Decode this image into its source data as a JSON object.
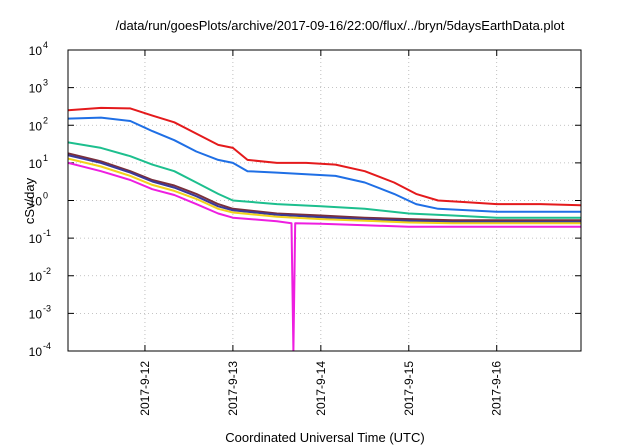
{
  "chart_data": {
    "type": "line",
    "title": "/data/run/goesPlots/archive/2017-09-16/22:00/flux/../bryn/5daysEarthData.plot",
    "xlabel": "Coordinated Universal Time (UTC)",
    "ylabel": "cSv/day",
    "yscale": "log",
    "ylim": [
      0.0001,
      10000
    ],
    "xlim": [
      "2017-09-11T03:00",
      "2017-09-16T23:00"
    ],
    "grid": true,
    "legend": "none",
    "x_ticks": [
      "2017-9-12",
      "2017-9-13",
      "2017-9-14",
      "2017-9-15",
      "2017-9-16"
    ],
    "y_ticks": [
      {
        "base": "10",
        "exp": "-4"
      },
      {
        "base": "10",
        "exp": "-3"
      },
      {
        "base": "10",
        "exp": "-2"
      },
      {
        "base": "10",
        "exp": "-1"
      },
      {
        "base": "10",
        "exp": "0"
      },
      {
        "base": "10",
        "exp": "1"
      },
      {
        "base": "10",
        "exp": "2"
      },
      {
        "base": "10",
        "exp": "3"
      },
      {
        "base": "10",
        "exp": "4"
      }
    ],
    "series": [
      {
        "color": "#e41a1c",
        "x": [
          "2017-09-11T03:00",
          "2017-09-11T12:00",
          "2017-09-11T20:00",
          "2017-09-12T02:00",
          "2017-09-12T08:00",
          "2017-09-12T14:00",
          "2017-09-12T20:00",
          "2017-09-13T00:00",
          "2017-09-13T04:00",
          "2017-09-13T12:00",
          "2017-09-13T20:00",
          "2017-09-14T04:00",
          "2017-09-14T12:00",
          "2017-09-14T20:00",
          "2017-09-15T02:00",
          "2017-09-15T08:00",
          "2017-09-15T16:00",
          "2017-09-16T00:00",
          "2017-09-16T12:00",
          "2017-09-16T23:00"
        ],
        "y": [
          250,
          290,
          280,
          180,
          120,
          60,
          30,
          25,
          12,
          10,
          10,
          9,
          6,
          3,
          1.5,
          1.0,
          0.9,
          0.8,
          0.8,
          0.75
        ]
      },
      {
        "color": "#1f6fe5",
        "x": [
          "2017-09-11T03:00",
          "2017-09-11T12:00",
          "2017-09-11T20:00",
          "2017-09-12T02:00",
          "2017-09-12T08:00",
          "2017-09-12T14:00",
          "2017-09-12T20:00",
          "2017-09-13T00:00",
          "2017-09-13T04:00",
          "2017-09-13T12:00",
          "2017-09-13T20:00",
          "2017-09-14T04:00",
          "2017-09-14T12:00",
          "2017-09-14T20:00",
          "2017-09-15T02:00",
          "2017-09-15T08:00",
          "2017-09-15T16:00",
          "2017-09-16T00:00",
          "2017-09-16T12:00",
          "2017-09-16T23:00"
        ],
        "y": [
          150,
          160,
          130,
          70,
          40,
          20,
          12,
          10,
          6,
          5.5,
          5,
          4.5,
          3,
          1.5,
          0.8,
          0.6,
          0.55,
          0.5,
          0.5,
          0.5
        ]
      },
      {
        "color": "#1dbf8e",
        "x": [
          "2017-09-11T03:00",
          "2017-09-11T12:00",
          "2017-09-11T20:00",
          "2017-09-12T02:00",
          "2017-09-12T08:00",
          "2017-09-12T14:00",
          "2017-09-12T20:00",
          "2017-09-13T00:00",
          "2017-09-13T12:00",
          "2017-09-14T00:00",
          "2017-09-14T12:00",
          "2017-09-15T00:00",
          "2017-09-15T12:00",
          "2017-09-16T00:00",
          "2017-09-16T23:00"
        ],
        "y": [
          35,
          25,
          15,
          9,
          6,
          3,
          1.5,
          1.0,
          0.8,
          0.7,
          0.6,
          0.45,
          0.4,
          0.35,
          0.35
        ]
      },
      {
        "color": "#7a2f3b",
        "x": [
          "2017-09-11T03:00",
          "2017-09-11T12:00",
          "2017-09-11T20:00",
          "2017-09-12T02:00",
          "2017-09-12T08:00",
          "2017-09-12T14:00",
          "2017-09-12T20:00",
          "2017-09-13T00:00",
          "2017-09-13T12:00",
          "2017-09-14T00:00",
          "2017-09-14T12:00",
          "2017-09-15T00:00",
          "2017-09-15T12:00",
          "2017-09-16T00:00",
          "2017-09-16T23:00"
        ],
        "y": [
          18,
          11,
          6,
          3.5,
          2.5,
          1.5,
          0.8,
          0.6,
          0.45,
          0.4,
          0.35,
          0.32,
          0.3,
          0.3,
          0.3
        ]
      },
      {
        "color": "#3a3a9a",
        "x": [
          "2017-09-11T03:00",
          "2017-09-11T12:00",
          "2017-09-11T20:00",
          "2017-09-12T02:00",
          "2017-09-12T08:00",
          "2017-09-12T14:00",
          "2017-09-12T20:00",
          "2017-09-13T00:00",
          "2017-09-13T12:00",
          "2017-09-14T00:00",
          "2017-09-14T12:00",
          "2017-09-15T00:00",
          "2017-09-15T12:00",
          "2017-09-16T00:00",
          "2017-09-16T23:00"
        ],
        "y": [
          16,
          10,
          5.5,
          3.2,
          2.2,
          1.3,
          0.7,
          0.55,
          0.42,
          0.36,
          0.32,
          0.29,
          0.27,
          0.27,
          0.27
        ]
      },
      {
        "color": "#f2d21c",
        "x": [
          "2017-09-11T03:00",
          "2017-09-11T12:00",
          "2017-09-11T20:00",
          "2017-09-12T02:00",
          "2017-09-12T08:00",
          "2017-09-12T14:00",
          "2017-09-12T20:00",
          "2017-09-13T00:00",
          "2017-09-13T12:00",
          "2017-09-14T00:00",
          "2017-09-14T12:00",
          "2017-09-15T00:00",
          "2017-09-15T12:00",
          "2017-09-16T00:00",
          "2017-09-16T23:00"
        ],
        "y": [
          13,
          8,
          4.5,
          2.6,
          1.8,
          1.1,
          0.6,
          0.48,
          0.37,
          0.32,
          0.29,
          0.26,
          0.25,
          0.25,
          0.25
        ]
      },
      {
        "color": "#ee1ee0",
        "x": [
          "2017-09-11T03:00",
          "2017-09-11T12:00",
          "2017-09-11T20:00",
          "2017-09-12T02:00",
          "2017-09-12T08:00",
          "2017-09-12T14:00",
          "2017-09-12T20:00",
          "2017-09-13T00:00",
          "2017-09-13T12:00",
          "2017-09-13T16:00",
          "2017-09-13T16:30",
          "2017-09-13T17:00",
          "2017-09-14T00:00",
          "2017-09-14T12:00",
          "2017-09-15T00:00",
          "2017-09-15T12:00",
          "2017-09-16T00:00",
          "2017-09-16T23:00"
        ],
        "y": [
          10,
          6,
          3.5,
          2.0,
          1.4,
          0.8,
          0.45,
          0.35,
          0.28,
          0.25,
          0.0001,
          0.25,
          0.24,
          0.22,
          0.2,
          0.2,
          0.2,
          0.2
        ]
      }
    ]
  }
}
